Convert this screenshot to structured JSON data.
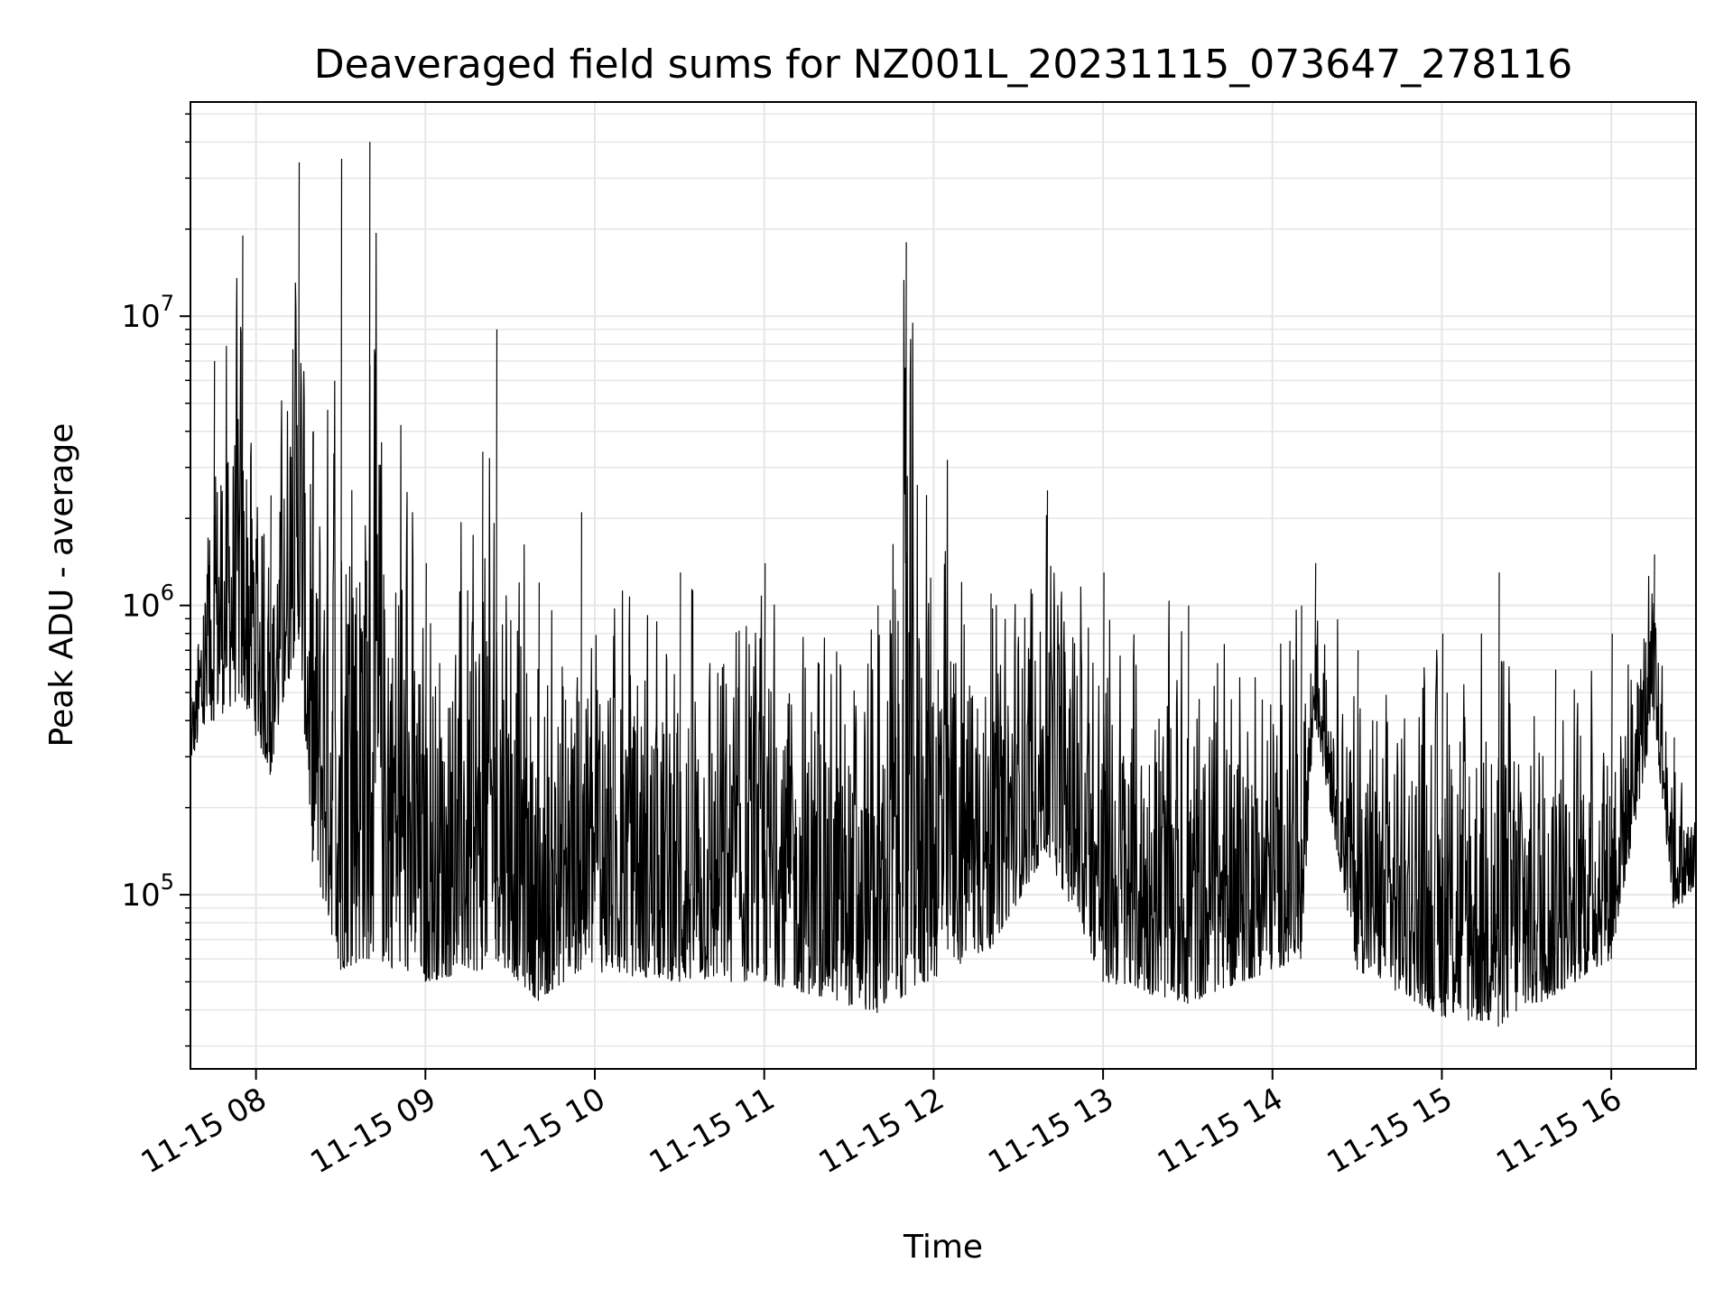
{
  "chart_data": {
    "type": "line",
    "title": "Deaveraged field sums for NZ001L_20231115_073647_278116",
    "xlabel": "Time",
    "ylabel": "Peak ADU - average",
    "yscale": "log",
    "xlim": [
      "2023-11-15T07:36:47",
      "2023-11-15T16:30:00"
    ],
    "ylim": [
      25000,
      55000000
    ],
    "grid": true,
    "grid_minor": true,
    "line_color": "#000000",
    "grid_color": "#e6e6e6",
    "x_ticks": [
      {
        "value": "2023-11-15T08:00:00",
        "label": "11-15 08"
      },
      {
        "value": "2023-11-15T09:00:00",
        "label": "11-15 09"
      },
      {
        "value": "2023-11-15T10:00:00",
        "label": "11-15 10"
      },
      {
        "value": "2023-11-15T11:00:00",
        "label": "11-15 11"
      },
      {
        "value": "2023-11-15T12:00:00",
        "label": "11-15 12"
      },
      {
        "value": "2023-11-15T13:00:00",
        "label": "11-15 13"
      },
      {
        "value": "2023-11-15T14:00:00",
        "label": "11-15 14"
      },
      {
        "value": "2023-11-15T15:00:00",
        "label": "11-15 15"
      },
      {
        "value": "2023-11-15T16:00:00",
        "label": "11-15 16"
      }
    ],
    "y_ticks": [
      {
        "value": 100000,
        "base": "10",
        "exp": "5"
      },
      {
        "value": 1000000,
        "base": "10",
        "exp": "6"
      },
      {
        "value": 10000000,
        "base": "10",
        "exp": "7"
      }
    ],
    "envelope": [
      {
        "t": "2023-11-15T07:36:47",
        "low": 290000,
        "high": 480000
      },
      {
        "t": "2023-11-15T07:45:00",
        "low": 400000,
        "high": 7000000
      },
      {
        "t": "2023-11-15T07:55:00",
        "low": 480000,
        "high": 19000000
      },
      {
        "t": "2023-11-15T08:05:00",
        "low": 260000,
        "high": 2400000
      },
      {
        "t": "2023-11-15T08:15:00",
        "low": 800000,
        "high": 34000000
      },
      {
        "t": "2023-11-15T08:20:00",
        "low": 130000,
        "high": 4000000
      },
      {
        "t": "2023-11-15T08:30:00",
        "low": 55000,
        "high": 35000000
      },
      {
        "t": "2023-11-15T08:40:00",
        "low": 60000,
        "high": 40000000
      },
      {
        "t": "2023-11-15T09:00:00",
        "low": 50000,
        "high": 1400000
      },
      {
        "t": "2023-11-15T09:20:00",
        "low": 55000,
        "high": 3400000
      },
      {
        "t": "2023-11-15T09:25:00",
        "low": 60000,
        "high": 9000000
      },
      {
        "t": "2023-11-15T09:40:00",
        "low": 43000,
        "high": 1200000
      },
      {
        "t": "2023-11-15T09:55:00",
        "low": 55000,
        "high": 2100000
      },
      {
        "t": "2023-11-15T10:30:00",
        "low": 50000,
        "high": 1300000
      },
      {
        "t": "2023-11-15T11:00:00",
        "low": 50000,
        "high": 1400000
      },
      {
        "t": "2023-11-15T11:40:00",
        "low": 39000,
        "high": 1000000
      },
      {
        "t": "2023-11-15T11:50:00",
        "low": 45000,
        "high": 18000000
      },
      {
        "t": "2023-11-15T12:20:00",
        "low": 65000,
        "high": 1100000
      },
      {
        "t": "2023-11-15T12:40:00",
        "low": 140000,
        "high": 2500000
      },
      {
        "t": "2023-11-15T13:00:00",
        "low": 50000,
        "high": 1300000
      },
      {
        "t": "2023-11-15T13:30:00",
        "low": 42000,
        "high": 1000000
      },
      {
        "t": "2023-11-15T14:10:00",
        "low": 60000,
        "high": 1000000
      },
      {
        "t": "2023-11-15T14:15:00",
        "low": 400000,
        "high": 1400000
      },
      {
        "t": "2023-11-15T14:30:00",
        "low": 55000,
        "high": 700000
      },
      {
        "t": "2023-11-15T15:00:00",
        "low": 38000,
        "high": 800000
      },
      {
        "t": "2023-11-15T15:20:00",
        "low": 35000,
        "high": 1300000
      },
      {
        "t": "2023-11-15T15:40:00",
        "low": 45000,
        "high": 600000
      },
      {
        "t": "2023-11-15T16:00:00",
        "low": 60000,
        "high": 800000
      },
      {
        "t": "2023-11-15T16:15:00",
        "low": 400000,
        "high": 1500000
      },
      {
        "t": "2023-11-15T16:22:00",
        "low": 90000,
        "high": 350000
      },
      {
        "t": "2023-11-15T16:30:00",
        "low": 100000,
        "high": 220000
      }
    ]
  }
}
